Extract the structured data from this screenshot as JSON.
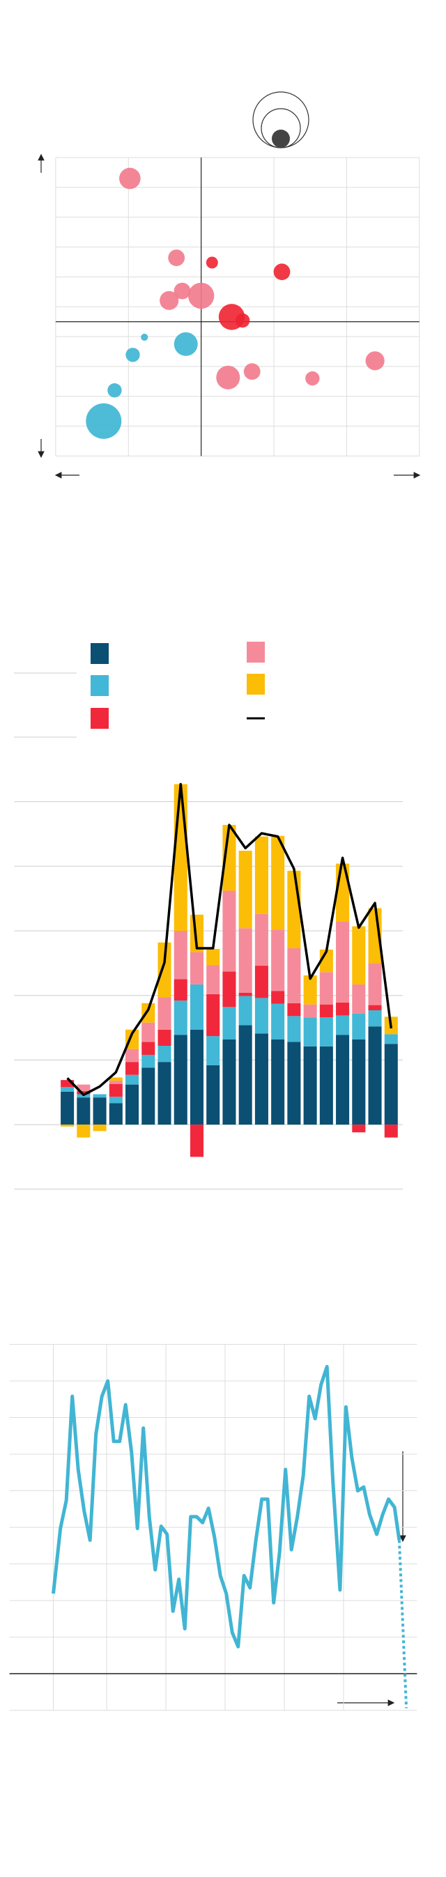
{
  "chart_data": [
    {
      "type": "scatter",
      "xlim": [
        -2,
        3
      ],
      "ylim": [
        -4.5,
        5.5
      ],
      "xticks": [
        -2,
        -1,
        0,
        1,
        2,
        3
      ],
      "yticks": [
        -4.5,
        -3.5,
        -2.5,
        -1.5,
        -0.5,
        0.5,
        1.5,
        2.5,
        3.5,
        4.5,
        5.5
      ],
      "grid": true,
      "series": [
        {
          "color": "#f2798b",
          "x": [
            -0.98,
            -0.34,
            -0.26,
            -0.44,
            0,
            2.39,
            0.37,
            0.7,
            1.53
          ],
          "values": [
            4.8,
            2.14,
            1.03,
            0.71,
            0.87,
            -1.31,
            -1.87,
            -1.67,
            -1.9
          ],
          "sizes": [
            9,
            7,
            7,
            8,
            11,
            8,
            10,
            7,
            6
          ]
        },
        {
          "color": "#ee2431",
          "x": [
            0.15,
            1.11,
            0.42,
            0.57
          ],
          "values": [
            1.98,
            1.67,
            0.16,
            0.04
          ],
          "sizes": [
            5,
            7,
            11,
            6
          ]
        },
        {
          "color": "#3cb5d3",
          "x": [
            -0.78,
            -0.94,
            -0.21,
            -1.19,
            -1.34
          ],
          "values": [
            -0.52,
            -1.11,
            -0.75,
            -2.3,
            -3.33
          ],
          "sizes": [
            3,
            6,
            10,
            6,
            15
          ]
        }
      ]
    },
    {
      "type": "bar",
      "stacked": true,
      "categories": [
        null,
        null,
        null,
        null,
        null,
        null,
        null,
        null,
        null,
        null,
        null,
        null,
        null,
        null,
        null,
        null,
        null,
        null,
        null,
        null,
        null
      ],
      "ylim": [
        -1,
        5.4
      ],
      "yticks": [
        -1,
        0,
        1,
        2,
        3,
        4,
        5
      ],
      "grid": true,
      "series": [
        {
          "color": "#0b4f73",
          "values": [
            0.51,
            0.42,
            0.42,
            0.33,
            0.62,
            0.88,
            0.97,
            1.39,
            1.47,
            0.92,
            1.32,
            1.54,
            1.41,
            1.32,
            1.28,
            1.21,
            1.21,
            1.39,
            1.32,
            1.52,
            1.25
          ]
        },
        {
          "color": "#42b7d6",
          "values": [
            0.07,
            0.05,
            0.05,
            0.1,
            0.15,
            0.2,
            0.25,
            0.53,
            0.7,
            0.45,
            0.5,
            0.45,
            0.55,
            0.55,
            0.4,
            0.45,
            0.45,
            0.3,
            0.4,
            0.25,
            0.15
          ]
        },
        {
          "color": "#f1283c",
          "values": [
            0.11,
            0.05,
            0,
            0.2,
            0.2,
            0.2,
            0.25,
            0.33,
            -0.5,
            0.65,
            0.55,
            0.05,
            0.5,
            0.2,
            0.2,
            0,
            0.2,
            0.2,
            -0.12,
            0.08,
            -0.2
          ]
        },
        {
          "color": "#f58b9a",
          "values": [
            0,
            0.1,
            0,
            0.05,
            0.2,
            0.3,
            0.5,
            0.75,
            0.5,
            0.45,
            1.25,
            1.0,
            0.8,
            0.95,
            0.85,
            0.2,
            0.5,
            1.25,
            0.45,
            0.65,
            0
          ]
        },
        {
          "color": "#fbbd06",
          "values": [
            -0.03,
            -0.2,
            -0.1,
            0.05,
            0.3,
            0.3,
            0.85,
            2.27,
            0.58,
            0.25,
            1.02,
            1.2,
            1.2,
            1.45,
            1.2,
            0.45,
            0.35,
            0.9,
            0.9,
            0.85,
            0.27
          ]
        },
        {
          "color": "#000000",
          "type": "line",
          "values": [
            0.72,
            0.46,
            0.59,
            0.81,
            1.41,
            1.78,
            2.51,
            5.27,
            2.73,
            2.73,
            4.64,
            4.28,
            4.51,
            4.46,
            3.96,
            2.26,
            2.68,
            4.13,
            3.05,
            3.43,
            1.49
          ]
        }
      ]
    },
    {
      "type": "line",
      "xlim": [
        -7.4,
        61.4
      ],
      "xticks": [
        0,
        9,
        19,
        29,
        39,
        49
      ],
      "ylim": [
        -1,
        9
      ],
      "yticks": [
        -1,
        0,
        1,
        2,
        3,
        4,
        5,
        6,
        7,
        8,
        9
      ],
      "grid": true,
      "x": [
        0,
        1.2,
        2.2,
        3.2,
        4.2,
        5.2,
        6.2,
        7.2,
        8.2,
        9.2,
        10.2,
        11.2,
        12.2,
        13.2,
        14.2,
        15.2,
        16.2,
        17.2,
        18.2,
        19.2,
        20.2,
        21.2,
        22.2,
        23.2,
        24.2,
        25.2,
        26.2,
        27.2,
        28.2,
        29.2,
        30.2,
        31.2,
        32.2,
        33.2,
        34.2,
        35.2,
        36.2,
        37.2,
        38.2,
        39.2,
        40.2,
        41.2,
        42.2,
        43.2,
        44.2,
        45.2,
        46.2,
        47.2,
        48.4,
        49.4,
        50.4,
        51.4,
        52.4,
        53.4,
        54.6,
        55.6,
        56.6,
        57.6,
        58.4,
        59.6
      ],
      "series": [
        {
          "color": "#41b5d3",
          "style": "solid",
          "values": [
            2.19,
            3.97,
            4.74,
            7.58,
            5.58,
            4.45,
            3.65,
            6.55,
            7.58,
            8.0,
            6.35,
            6.35,
            7.35,
            6.06,
            3.97,
            6.71,
            4.29,
            2.84,
            4.03,
            3.81,
            1.71,
            2.58,
            1.23,
            4.29,
            4.29,
            4.13,
            4.52,
            3.74,
            2.68,
            2.19,
            1.13,
            0.74,
            2.68,
            2.35,
            3.65,
            4.77,
            4.77,
            1.94,
            3.32,
            5.58,
            3.39,
            4.29,
            5.42,
            7.58,
            6.97,
            7.9,
            8.39,
            5.26,
            2.29,
            7.29,
            5.9,
            5.0,
            5.1,
            4.35,
            3.81,
            4.35,
            4.77,
            4.55,
            3.65,
            null
          ]
        },
        {
          "color": "#41b5d3",
          "style": "dotted",
          "values": [
            null,
            null,
            null,
            null,
            null,
            null,
            null,
            null,
            null,
            null,
            null,
            null,
            null,
            null,
            null,
            null,
            null,
            null,
            null,
            null,
            null,
            null,
            null,
            null,
            null,
            null,
            null,
            null,
            null,
            null,
            null,
            null,
            null,
            null,
            null,
            null,
            null,
            null,
            null,
            null,
            null,
            null,
            null,
            null,
            null,
            null,
            null,
            null,
            null,
            null,
            null,
            null,
            null,
            null,
            null,
            null,
            null,
            null,
            3.65,
            -0.94
          ]
        }
      ]
    }
  ]
}
